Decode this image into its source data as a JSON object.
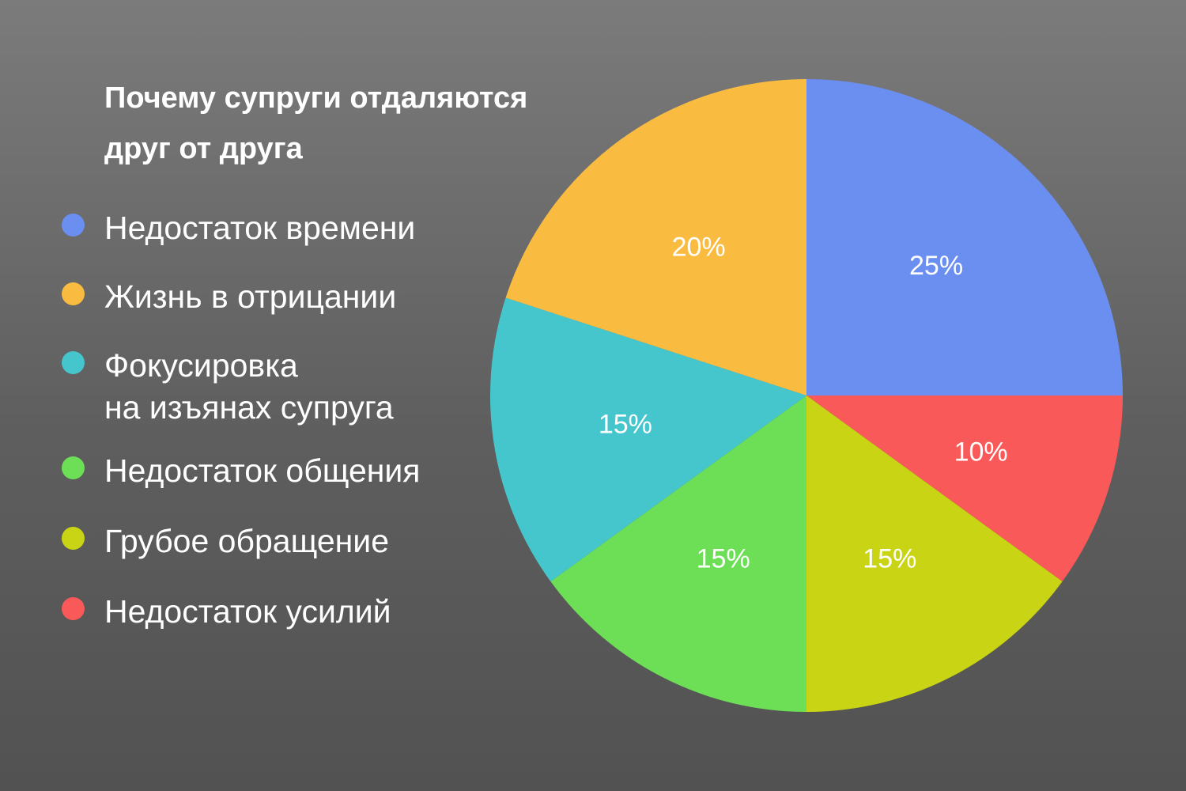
{
  "chart_data": {
    "type": "pie",
    "title": "Почему супруги отдаляются друг от друга",
    "categories": [
      "Недостаток времени",
      "Недостаток усилий",
      "Грубое обращение",
      "Недостаток общения",
      "Фокусировка\nна изъянах супруга",
      "Жизнь в отрицании"
    ],
    "values": [
      25,
      10,
      15,
      15,
      15,
      20
    ],
    "labels": [
      "25%",
      "10%",
      "15%",
      "15%",
      "15%",
      "20%"
    ],
    "colors": [
      "#6a8ff0",
      "#f95a59",
      "#c9d414",
      "#6ddf56",
      "#45c6cd",
      "#f9bc41"
    ],
    "legend_position": "left",
    "legend": [
      {
        "label": "Недостаток времени",
        "color": "#6a8ff0"
      },
      {
        "label": "Жизнь в отрицании",
        "color": "#f9bc41"
      },
      {
        "label": "Фокусировка\nна изъянах супруга",
        "color": "#45c6cd"
      },
      {
        "label": "Недостаток общения",
        "color": "#6ddf56"
      },
      {
        "label": "Грубое обращение",
        "color": "#c9d414"
      },
      {
        "label": "Недостаток усилий",
        "color": "#f95a59"
      }
    ]
  }
}
